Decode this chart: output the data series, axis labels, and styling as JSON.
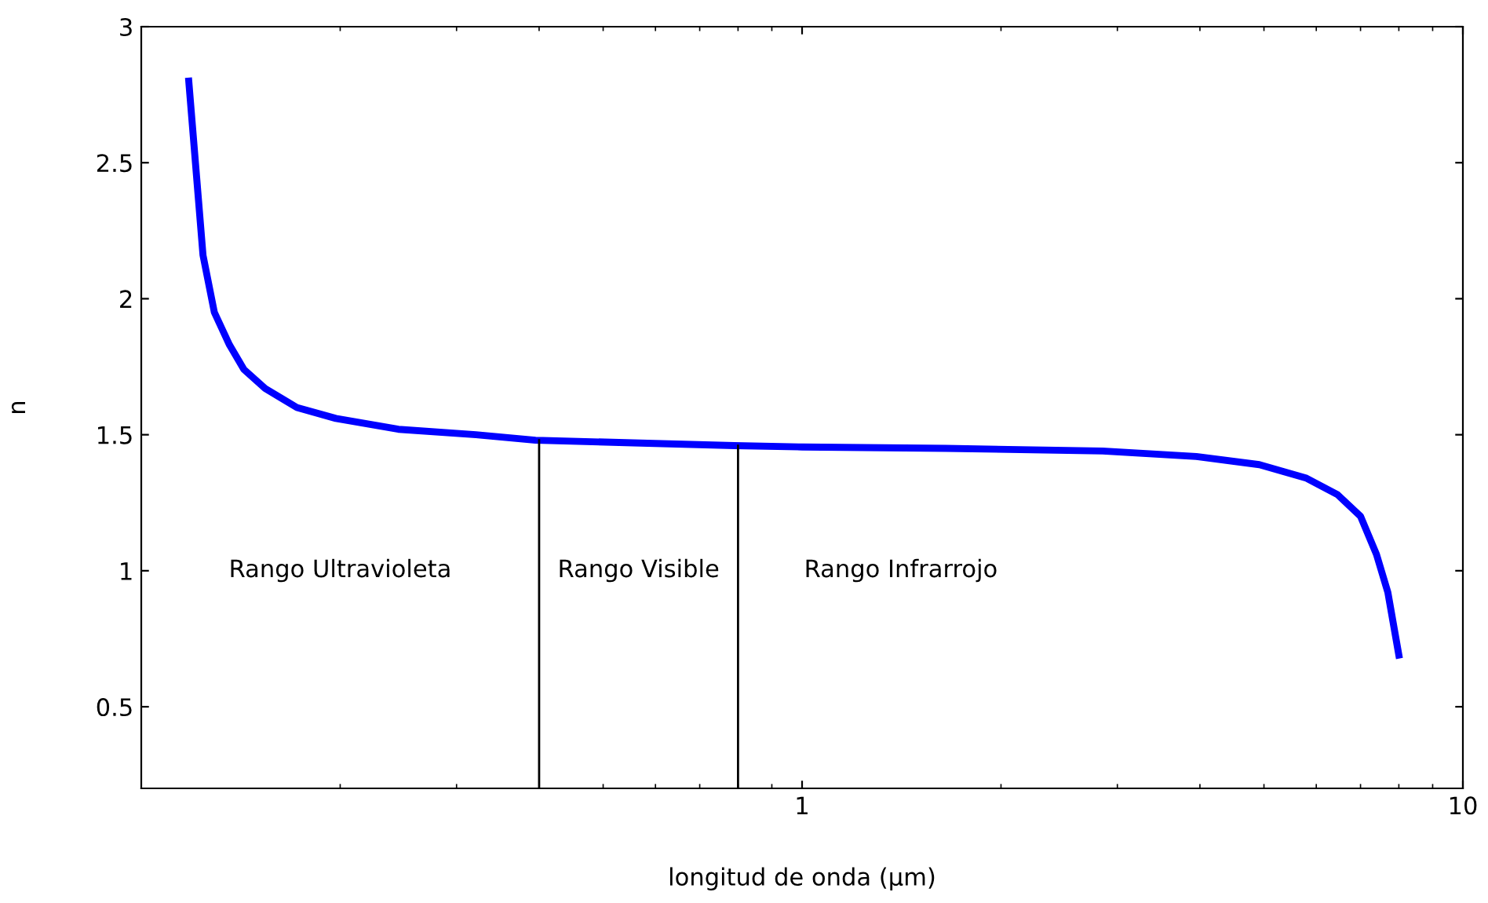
{
  "chart_data": {
    "type": "line",
    "xlabel": "longitud de onda (µm)",
    "ylabel": "n",
    "log": "x",
    "xlim": [
      0.1,
      10
    ],
    "xticks": [
      1,
      10
    ],
    "ylim": [
      0.2,
      3
    ],
    "yticks": [
      0.5,
      1,
      1.5,
      2,
      2.5,
      3
    ],
    "grid": false,
    "legend": false,
    "x": [
      0.118,
      0.124,
      0.129,
      0.136,
      0.143,
      0.154,
      0.172,
      0.197,
      0.245,
      0.321,
      0.395,
      0.555,
      0.79,
      1,
      1.65,
      2.85,
      3.95,
      4.92,
      5.8,
      6.46,
      7.0,
      7.4,
      7.7,
      8.0
    ],
    "series": [
      {
        "color": "#0000ff",
        "values": [
          2.8,
          2.16,
          1.95,
          1.83,
          1.74,
          1.67,
          1.6,
          1.56,
          1.52,
          1.5,
          1.48,
          1.47,
          1.46,
          1.455,
          1.45,
          1.44,
          1.42,
          1.39,
          1.34,
          1.28,
          1.2,
          1.06,
          0.92,
          0.69
        ]
      }
    ],
    "ref_lines": [
      {
        "axis": "x",
        "value": 0.4,
        "color": "#000000"
      },
      {
        "axis": "x",
        "value": 0.8,
        "color": "#000000"
      }
    ],
    "annotations": [
      "Rango Ultravioleta",
      "Rango Visible",
      "Rango Infrarrojo"
    ]
  }
}
